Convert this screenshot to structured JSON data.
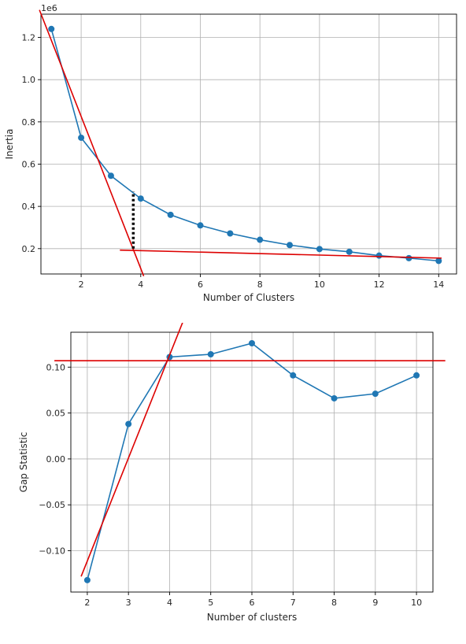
{
  "colors": {
    "series": "#1f77b4",
    "annotation": "#dd0000",
    "grid": "#b0b0b0",
    "axis": "#000000",
    "marker_dotted": "#000000"
  },
  "chart_data": [
    {
      "type": "line",
      "title": "",
      "xlabel": "Number of Clusters",
      "ylabel": "Inertia",
      "offset_label": "1e6",
      "grid": true,
      "xlim": [
        0.65,
        14.6
      ],
      "ylim": [
        0.08,
        1.31
      ],
      "xticks": [
        2,
        4,
        6,
        8,
        10,
        12,
        14
      ],
      "yticks": [
        0.2,
        0.4,
        0.6,
        0.8,
        1.0,
        1.2
      ],
      "xtick_labels": [
        "2",
        "4",
        "6",
        "8",
        "10",
        "12",
        "14"
      ],
      "ytick_labels": [
        "0.2",
        "0.4",
        "0.6",
        "0.8",
        "1.0",
        "1.2"
      ],
      "series": [
        {
          "x": [
            1,
            2,
            3,
            4,
            5,
            6,
            7,
            8,
            9,
            10,
            11,
            12,
            13,
            14
          ],
          "y": [
            1.24,
            0.725,
            0.545,
            0.437,
            0.36,
            0.31,
            0.272,
            0.242,
            0.217,
            0.198,
            0.185,
            0.167,
            0.155,
            0.142
          ]
        }
      ],
      "annotations": [
        {
          "type": "line",
          "points": [
            [
              0.6,
              1.33
            ],
            [
              4.1,
              0.07
            ]
          ]
        },
        {
          "type": "line",
          "points": [
            [
              3.3,
              0.193
            ],
            [
              14.1,
              0.155
            ]
          ]
        },
        {
          "type": "dotted-vertical",
          "x": 3.75,
          "y_range": [
            0.2,
            0.47
          ]
        }
      ]
    },
    {
      "type": "line",
      "title": "",
      "xlabel": "Number of clusters",
      "ylabel": "Gap Statistic",
      "grid": true,
      "xlim": [
        1.6,
        10.4
      ],
      "ylim": [
        -0.145,
        0.138
      ],
      "xticks": [
        2,
        3,
        4,
        5,
        6,
        7,
        8,
        9,
        10
      ],
      "yticks": [
        -0.1,
        -0.05,
        0.0,
        0.05,
        0.1
      ],
      "xtick_labels": [
        "2",
        "3",
        "4",
        "5",
        "6",
        "7",
        "8",
        "9",
        "10"
      ],
      "ytick_labels": [
        "−0.10",
        "−0.05",
        "0.00",
        "0.05",
        "0.10"
      ],
      "series": [
        {
          "x": [
            2,
            3,
            4,
            5,
            6,
            7,
            8,
            9,
            10
          ],
          "y": [
            -0.132,
            0.038,
            0.111,
            0.114,
            0.126,
            0.091,
            0.066,
            0.071,
            0.091
          ]
        }
      ],
      "annotations": [
        {
          "type": "line",
          "points": [
            [
              1.2,
              0.107
            ],
            [
              10.7,
              0.107
            ]
          ]
        },
        {
          "type": "line",
          "points": [
            [
              1.85,
              -0.128
            ],
            [
              4.4,
              0.158
            ]
          ]
        }
      ]
    }
  ]
}
